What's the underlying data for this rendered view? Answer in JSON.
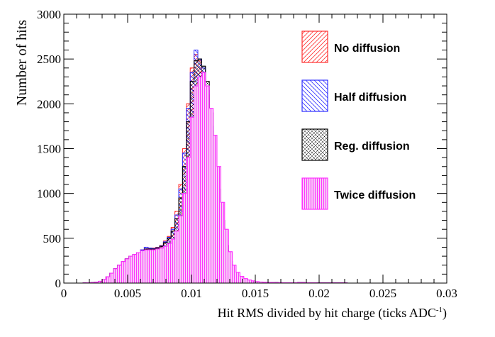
{
  "chart_data": {
    "type": "step-histogram",
    "xlabel": "Hit RMS divided by hit charge (ticks ADC",
    "xlabel_sup": "-1",
    "xlabel_close": ")",
    "ylabel": "Number of hits",
    "xlim": [
      0,
      0.03
    ],
    "ylim": [
      0,
      3000
    ],
    "xticks": [
      {
        "value": 0,
        "label": "0"
      },
      {
        "value": 0.005,
        "label": "0.005"
      },
      {
        "value": 0.01,
        "label": "0.01"
      },
      {
        "value": 0.015,
        "label": "0.015"
      },
      {
        "value": 0.02,
        "label": "0.02"
      },
      {
        "value": 0.025,
        "label": "0.025"
      },
      {
        "value": 0.03,
        "label": "0.03"
      }
    ],
    "yticks": [
      {
        "value": 0,
        "label": "0"
      },
      {
        "value": 500,
        "label": "500"
      },
      {
        "value": 1000,
        "label": "1000"
      },
      {
        "value": 1500,
        "label": "1500"
      },
      {
        "value": 2000,
        "label": "2000"
      },
      {
        "value": 2500,
        "label": "2500"
      },
      {
        "value": 3000,
        "label": "3000"
      }
    ],
    "grid": false,
    "legend_position": "top-right",
    "bin_edges_start": 0.0015,
    "bin_width": 0.0003,
    "series": [
      {
        "name": "No diffusion",
        "color": "#ff3030",
        "hatch": "forward",
        "values": [
          2,
          3,
          5,
          10,
          20,
          40,
          70,
          110,
          160,
          200,
          240,
          270,
          300,
          320,
          340,
          370,
          400,
          390,
          390,
          400,
          420,
          470,
          520,
          620,
          800,
          1100,
          1500,
          2000,
          2400,
          2550,
          2480,
          2350,
          2100,
          1700,
          1300,
          900,
          600,
          350,
          200,
          130,
          80,
          50,
          35,
          25,
          18,
          12,
          10,
          8,
          6,
          5,
          5,
          4,
          4,
          4,
          4,
          4,
          5,
          5,
          4,
          3,
          3,
          2,
          2,
          2,
          2,
          2,
          2,
          2,
          2
        ]
      },
      {
        "name": "Half diffusion",
        "color": "#3030ff",
        "hatch": "backward",
        "values": [
          2,
          3,
          5,
          10,
          20,
          40,
          70,
          110,
          160,
          200,
          240,
          270,
          300,
          320,
          340,
          370,
          400,
          390,
          385,
          395,
          415,
          460,
          510,
          600,
          760,
          1050,
          1450,
          1950,
          2350,
          2600,
          2500,
          2400,
          2150,
          1750,
          1350,
          950,
          620,
          360,
          210,
          130,
          80,
          50,
          35,
          25,
          18,
          12,
          10,
          8,
          6,
          5,
          5,
          4,
          4,
          4,
          4,
          4,
          5,
          5,
          4,
          3,
          3,
          2,
          2,
          2,
          2,
          2,
          2,
          2,
          2
        ]
      },
      {
        "name": "Reg. diffusion",
        "color": "#000000",
        "hatch": "cross",
        "values": [
          2,
          3,
          5,
          10,
          20,
          40,
          70,
          110,
          160,
          200,
          240,
          270,
          300,
          320,
          340,
          360,
          380,
          380,
          380,
          390,
          410,
          450,
          500,
          580,
          720,
          950,
          1300,
          1800,
          2250,
          2480,
          2500,
          2420,
          2250,
          1900,
          1500,
          1050,
          700,
          420,
          240,
          150,
          90,
          55,
          38,
          27,
          19,
          13,
          10,
          8,
          6,
          5,
          5,
          4,
          4,
          4,
          4,
          4,
          5,
          5,
          4,
          3,
          3,
          2,
          2,
          2,
          2,
          2,
          2,
          2,
          2
        ]
      },
      {
        "name": "Twice diffusion",
        "color": "#ff33ff",
        "hatch": "vertical",
        "values": [
          2,
          3,
          5,
          10,
          20,
          40,
          70,
          110,
          160,
          200,
          240,
          270,
          300,
          320,
          340,
          360,
          370,
          370,
          370,
          380,
          390,
          410,
          440,
          490,
          580,
          750,
          1000,
          1400,
          1850,
          2200,
          2300,
          2350,
          2200,
          1950,
          1650,
          1300,
          900,
          600,
          350,
          200,
          120,
          75,
          50,
          35,
          25,
          17,
          12,
          9,
          7,
          6,
          5,
          5,
          4,
          4,
          4,
          4,
          5,
          5,
          4,
          3,
          3,
          2,
          2,
          2,
          2,
          2,
          2,
          2,
          2
        ]
      }
    ]
  }
}
